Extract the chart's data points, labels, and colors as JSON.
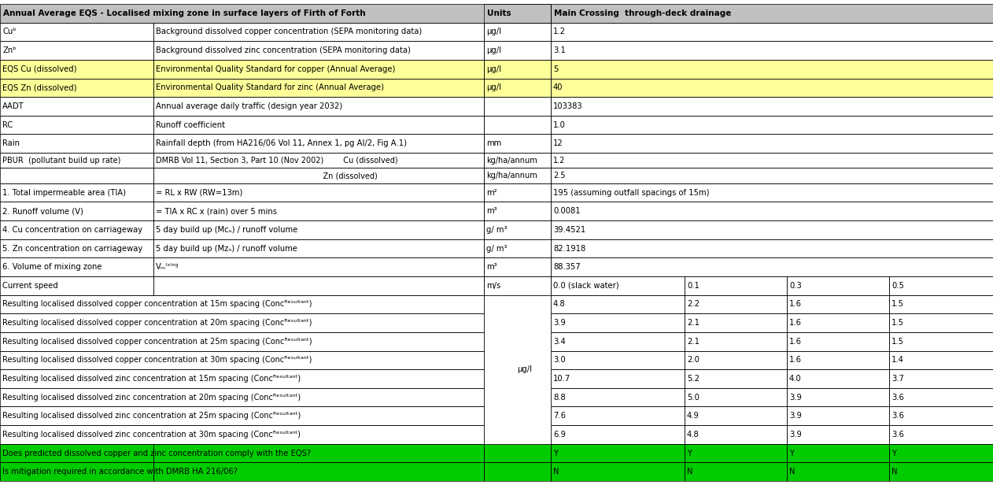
{
  "title": "Annual Average EQS - Localised mixing zone in surface layers of Firth of Forth",
  "header_right": "Main Crossing  through-deck drainage",
  "header_units": "Units",
  "bg_header": "#c0c0c0",
  "bg_yellow": "#ffff99",
  "bg_green": "#00cc00",
  "bg_white": "#ffffff",
  "rows": [
    {
      "col1": "Cuᵇ",
      "col2": "Background dissolved copper concentration (SEPA monitoring data)",
      "col3": "μg/l",
      "col4": "1.2",
      "col5": "",
      "col6": "",
      "col7": "",
      "bg": "white",
      "span_col4": true
    },
    {
      "col1": "Znᵇ",
      "col2": "Background dissolved zinc concentration (SEPA monitoring data)",
      "col3": "μg/l",
      "col4": "3.1",
      "col5": "",
      "col6": "",
      "col7": "",
      "bg": "white",
      "span_col4": true
    },
    {
      "col1": "EQS Cu (dissolved)",
      "col2": "Environmental Quality Standard for copper (Annual Average)",
      "col3": "μg/l",
      "col4": "5",
      "col5": "",
      "col6": "",
      "col7": "",
      "bg": "yellow",
      "span_col4": true
    },
    {
      "col1": "EQS Zn (dissolved)",
      "col2": "Environmental Quality Standard for zinc (Annual Average)",
      "col3": "μg/l",
      "col4": "40",
      "col5": "",
      "col6": "",
      "col7": "",
      "bg": "yellow",
      "span_col4": true
    },
    {
      "col1": "AADT",
      "col2": "Annual average daily traffic (design year 2032)",
      "col3": "",
      "col4": "103383",
      "col5": "",
      "col6": "",
      "col7": "",
      "bg": "white",
      "span_col4": true
    },
    {
      "col1": "RC",
      "col2": "Runoff coefficient",
      "col3": "",
      "col4": "1.0",
      "col5": "",
      "col6": "",
      "col7": "",
      "bg": "white",
      "span_col4": true
    },
    {
      "col1": "Rain",
      "col2": "Rainfall depth (from HA216/06 Vol 11, Annex 1, pg AI/2, Fig A.1)",
      "col3": "mm",
      "col4": "12",
      "col5": "",
      "col6": "",
      "col7": "",
      "bg": "white",
      "span_col4": true
    },
    {
      "col1": "PBUR  (pollutant build up rate)",
      "col2": "DMRB Vol 11, Section 3, Part 10 (Nov 2002)        Cu (dissolved)",
      "col3": "kg/ha/annum",
      "col4": "1.2",
      "col5": "",
      "col6": "",
      "col7": "",
      "bg": "white",
      "span_col4": true,
      "subrow": true,
      "sub_col2": "                                                                    Zn (dissolved)",
      "sub_col3": "kg/ha/annum",
      "sub_col4": "2.5"
    },
    {
      "col1": "1. Total impermeable area (TIA)",
      "col2": "= RL x RW (RW=13m)",
      "col3": "m²",
      "col4": "195 (assuming outfall spacings of 15m)",
      "col5": "",
      "col6": "",
      "col7": "",
      "bg": "white",
      "span_col4": true
    },
    {
      "col1": "2. Runoff volume (V)",
      "col2": "= TIA x RC x (rain) over 5 mins",
      "col3": "m³",
      "col4": "0.0081",
      "col5": "",
      "col6": "",
      "col7": "",
      "bg": "white",
      "span_col4": true
    },
    {
      "col1": "4. Cu concentration on carriageway",
      "col2": "5 day build up (Mᴄᵤ) / runoff volume",
      "col3": "g/ m³",
      "col4": "39.4521",
      "col5": "",
      "col6": "",
      "col7": "",
      "bg": "white",
      "span_col4": true
    },
    {
      "col1": "5. Zn concentration on carriageway",
      "col2": "5 day build up (Mᴢₙ) / runoff volume",
      "col3": "g/ m³",
      "col4": "82.1918",
      "col5": "",
      "col6": "",
      "col7": "",
      "bg": "white",
      "span_col4": true
    },
    {
      "col1": "6. Volume of mixing zone",
      "col2": "Vₘᴵˣᴵⁿᵍ",
      "col3": "m³",
      "col4": "88.357",
      "col5": "",
      "col6": "",
      "col7": "",
      "bg": "white",
      "span_col4": true
    },
    {
      "col1": "Current speed",
      "col2": "",
      "col3": "m/s",
      "col4": "0.0 (slack water)",
      "col5": "0.1",
      "col6": "0.3",
      "col7": "0.5",
      "bg": "white",
      "span_col4": false
    },
    {
      "col1": "Resulting localised dissolved copper concentration at 15m spacing (Concᴿᵉˢᵘˡᵗᵃⁿᵗ)",
      "col2": "",
      "col3": "",
      "col4": "4.8",
      "col5": "2.2",
      "col6": "1.6",
      "col7": "1.5",
      "bg": "white",
      "span_col4": false,
      "units_span": true
    },
    {
      "col1": "Resulting localised dissolved copper concentration at 20m spacing (Concᴿᵉˢᵘˡᵗᵃⁿᵗ)",
      "col2": "",
      "col3": "",
      "col4": "3.9",
      "col5": "2.1",
      "col6": "1.6",
      "col7": "1.5",
      "bg": "white",
      "span_col4": false,
      "units_span": true
    },
    {
      "col1": "Resulting localised dissolved copper concentration at 25m spacing (Concᴿᵉˢᵘˡᵗᵃⁿᵗ)",
      "col2": "",
      "col3": "",
      "col4": "3.4",
      "col5": "2.1",
      "col6": "1.6",
      "col7": "1.5",
      "bg": "white",
      "span_col4": false,
      "units_span": true
    },
    {
      "col1": "Resulting localised dissolved copper concentration at 30m spacing (Concᴿᵉˢᵘˡᵗᵃⁿᵗ)",
      "col2": "",
      "col3": "",
      "col4": "3.0",
      "col5": "2.0",
      "col6": "1.6",
      "col7": "1.4",
      "bg": "white",
      "span_col4": false,
      "units_span": true
    },
    {
      "col1": "Resulting localised dissolved zinc concentration at 15m spacing (Concᴿᵉˢᵘˡᵗᵃⁿᵗ)",
      "col2": "",
      "col3": "",
      "col4": "10.7",
      "col5": "5.2",
      "col6": "4.0",
      "col7": "3.7",
      "bg": "white",
      "span_col4": false,
      "units_span": true
    },
    {
      "col1": "Resulting localised dissolved zinc concentration at 20m spacing (Concᴿᵉˢᵘˡᵗᵃⁿᵗ)",
      "col2": "",
      "col3": "",
      "col4": "8.8",
      "col5": "5.0",
      "col6": "3.9",
      "col7": "3.6",
      "bg": "white",
      "span_col4": false,
      "units_span": true
    },
    {
      "col1": "Resulting localised dissolved zinc concentration at 25m spacing (Concᴿᵉˢᵘˡᵗᵃⁿᵗ)",
      "col2": "",
      "col3": "",
      "col4": "7.6",
      "col5": "4.9",
      "col6": "3.9",
      "col7": "3.6",
      "bg": "white",
      "span_col4": false,
      "units_span": true
    },
    {
      "col1": "Resulting localised dissolved zinc concentration at 30m spacing (Concᴿᵉˢᵘˡᵗᵃⁿᵗ)",
      "col2": "",
      "col3": "",
      "col4": "6.9",
      "col5": "4.8",
      "col6": "3.9",
      "col7": "3.6",
      "bg": "white",
      "span_col4": false,
      "units_span": true
    },
    {
      "col1": "Does predicted dissolved copper and zinc concentration comply with the EQS?",
      "col2": "",
      "col3": "",
      "col4": "Y",
      "col5": "Y",
      "col6": "Y",
      "col7": "Y",
      "bg": "green",
      "span_col4": false
    },
    {
      "col1": "Is mitigation required in accordance with DMRB HA 216/06?",
      "col2": "",
      "col3": "",
      "col4": "N",
      "col5": "N",
      "col6": "N",
      "col7": "N",
      "bg": "green",
      "span_col4": false
    }
  ]
}
